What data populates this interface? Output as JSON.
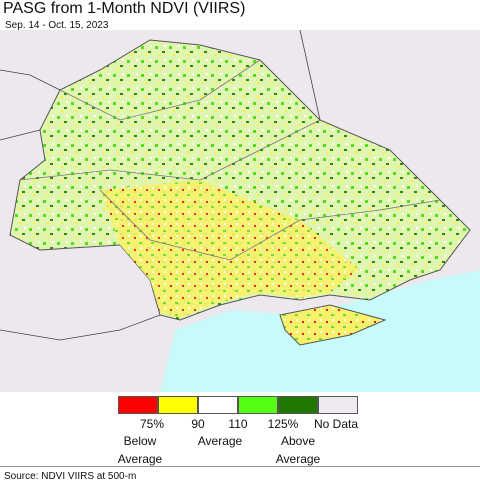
{
  "header": {
    "title": "PASG from 1-Month NDVI (VIIRS)",
    "subtitle": "Sep. 14 - Oct. 15, 2023"
  },
  "legend": {
    "colors": [
      "#ff0000",
      "#ffff00",
      "#ffffff",
      "#55ff11",
      "#227700",
      "#eeeaf0"
    ],
    "tick_labels": [
      "75%",
      "90",
      "110",
      "125%",
      "No Data"
    ],
    "group_labels": [
      "Below Average",
      "Average",
      "Above Average"
    ]
  },
  "footer": {
    "source": "Source: NDVI VIIRS at 500-m"
  }
}
